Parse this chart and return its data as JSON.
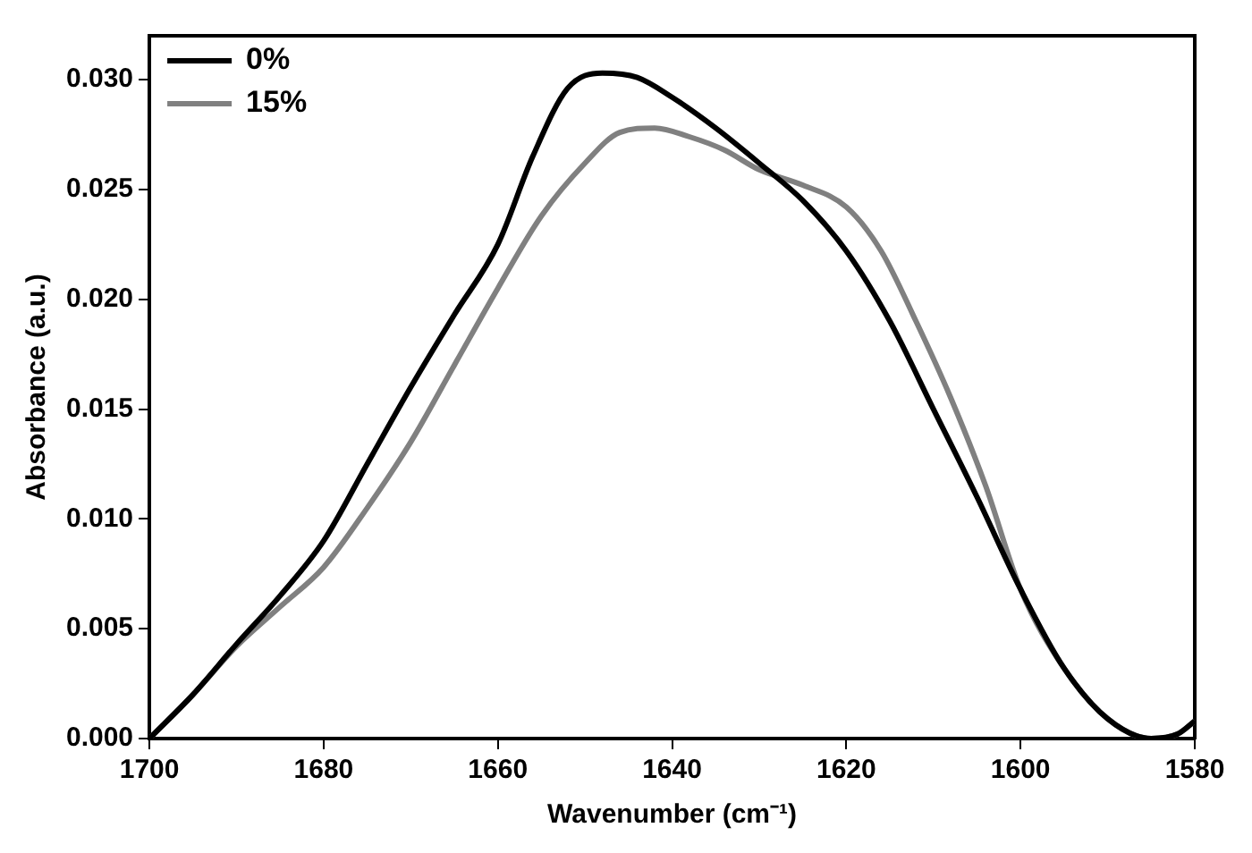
{
  "chart_data": {
    "type": "line",
    "xlabel": "Wavenumber (cm⁻¹)",
    "ylabel": "Absorbance (a.u.)",
    "xlim": [
      1700,
      1580
    ],
    "xticks": [
      1700,
      1680,
      1660,
      1640,
      1620,
      1600,
      1580
    ],
    "ylim": [
      0,
      0.032
    ],
    "yticks": [
      {
        "value": 0,
        "label": "0.000"
      },
      {
        "value": 0.005,
        "label": "0.005"
      },
      {
        "value": 0.01,
        "label": "0.010"
      },
      {
        "value": 0.015,
        "label": "0.015"
      },
      {
        "value": 0.02,
        "label": "0.020"
      },
      {
        "value": 0.025,
        "label": "0.025"
      },
      {
        "value": 0.03,
        "label": "0.030"
      }
    ],
    "grid": false,
    "legend": "top left",
    "marker": "none",
    "line_style": "solid",
    "series": [
      {
        "name": "0%",
        "color": "#000000",
        "x": [
          1700,
          1695,
          1690,
          1685,
          1680,
          1675,
          1670,
          1665,
          1660,
          1656,
          1652,
          1648,
          1644,
          1640,
          1635,
          1630,
          1625,
          1620,
          1615,
          1610,
          1605,
          1600,
          1595,
          1590,
          1585,
          1582,
          1580
        ],
        "values": [
          0,
          0.002,
          0.0043,
          0.0065,
          0.009,
          0.0125,
          0.016,
          0.0193,
          0.0225,
          0.0265,
          0.0296,
          0.0303,
          0.0301,
          0.0292,
          0.0278,
          0.0262,
          0.0245,
          0.0222,
          0.019,
          0.015,
          0.011,
          0.0068,
          0.0032,
          0.0009,
          0,
          0.0002,
          0.0008
        ]
      },
      {
        "name": "15%",
        "color": "#808080",
        "x": [
          1700,
          1695,
          1690,
          1685,
          1680,
          1675,
          1670,
          1665,
          1660,
          1655,
          1650,
          1646,
          1642,
          1638,
          1634,
          1630,
          1625,
          1620,
          1616,
          1612,
          1608,
          1604,
          1600,
          1595,
          1590,
          1585,
          1582,
          1580
        ],
        "values": [
          0,
          0.002,
          0.0042,
          0.006,
          0.0078,
          0.0105,
          0.0135,
          0.017,
          0.0205,
          0.0238,
          0.0262,
          0.0276,
          0.0278,
          0.0274,
          0.0268,
          0.0259,
          0.0252,
          0.0242,
          0.0222,
          0.019,
          0.0155,
          0.0115,
          0.0068,
          0.0032,
          0.0009,
          0,
          0.0002,
          0.0008
        ]
      }
    ]
  }
}
